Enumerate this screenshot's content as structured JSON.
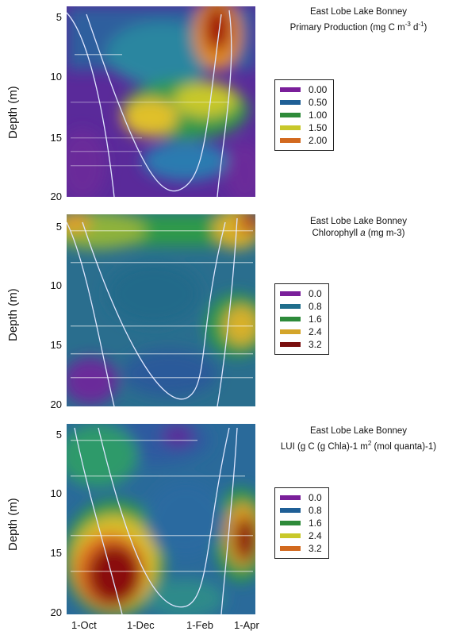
{
  "chart_data": [
    {
      "type": "heatmap",
      "title_line1": "East Lobe Lake Bonney",
      "title_line2": "Primary Production (mg C m",
      "title_sup1": "-3",
      "title_mid": " d",
      "title_sup2": "-1",
      "title_end": ")",
      "ylabel": "Depth (m)",
      "yticks": [
        "5",
        "10",
        "15",
        "20"
      ],
      "ylim": [
        4,
        20
      ],
      "legend": [
        {
          "label": "0.00",
          "color": "#7a1f9a"
        },
        {
          "label": "0.50",
          "color": "#1f5f96"
        },
        {
          "label": "1.00",
          "color": "#2e8b3a"
        },
        {
          "label": "1.50",
          "color": "#c8c82a"
        },
        {
          "label": "2.00",
          "color": "#d2691e"
        }
      ]
    },
    {
      "type": "heatmap",
      "title_line1": "East Lobe Lake Bonney",
      "title_line2_pre": "Chlorophyll ",
      "title_line2_it": "a",
      "title_line2_post": " (mg m-3)",
      "ylabel": "Depth (m)",
      "yticks": [
        "5",
        "10",
        "15",
        "20"
      ],
      "ylim": [
        4,
        20
      ],
      "legend": [
        {
          "label": "0.0",
          "color": "#7a1f9a"
        },
        {
          "label": "0.8",
          "color": "#1f6e8c"
        },
        {
          "label": "1.6",
          "color": "#2e8b3a"
        },
        {
          "label": "2.4",
          "color": "#d4a52a"
        },
        {
          "label": "3.2",
          "color": "#7a0f0f"
        }
      ]
    },
    {
      "type": "heatmap",
      "title_line1": "East Lobe Lake Bonney",
      "title_line2": "LUI (g C (g Chla)-1 m",
      "title_sup": "2",
      "title_end": " (mol quanta)-1)",
      "ylabel": "Depth (m)",
      "yticks": [
        "5",
        "10",
        "15",
        "20"
      ],
      "ylim": [
        4,
        20
      ],
      "xticks": [
        "1-Oct",
        "1-Dec",
        "1-Feb",
        "1-Apr"
      ],
      "legend": [
        {
          "label": "0.0",
          "color": "#7a1f9a"
        },
        {
          "label": "0.8",
          "color": "#1f5f96"
        },
        {
          "label": "1.6",
          "color": "#2e8b3a"
        },
        {
          "label": "2.4",
          "color": "#c8c82a"
        },
        {
          "label": "3.2",
          "color": "#d2691e"
        }
      ]
    }
  ]
}
